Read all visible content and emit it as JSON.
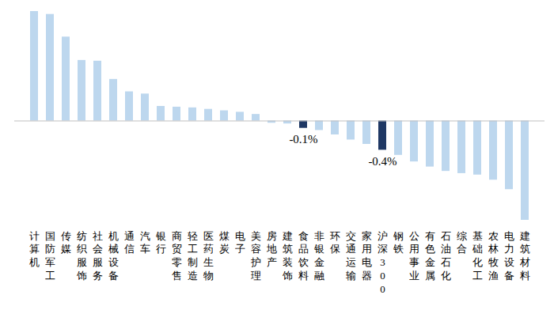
{
  "chart_data": {
    "type": "bar",
    "categories": [
      "计算机",
      "国防军工",
      "传媒",
      "纺织服饰",
      "社会服务",
      "机械设备",
      "通信",
      "汽车",
      "银行",
      "商贸零售",
      "轻工制造",
      "医药生物",
      "煤炭",
      "电子",
      "美容护理",
      "房地产",
      "建筑装饰",
      "食品饮料",
      "非银金融",
      "环保",
      "交通运输",
      "家用电器",
      "沪深300",
      "钢铁",
      "公用事业",
      "有色金属",
      "石油石化",
      "综合",
      "基础化工",
      "农林牧渔",
      "电力设备",
      "建筑材料"
    ],
    "values": [
      1.5,
      1.46,
      1.15,
      0.83,
      0.82,
      0.57,
      0.4,
      0.37,
      0.2,
      0.19,
      0.18,
      0.16,
      0.14,
      0.12,
      0.09,
      -0.03,
      -0.04,
      -0.1,
      -0.13,
      -0.19,
      -0.26,
      -0.32,
      -0.4,
      -0.47,
      -0.56,
      -0.63,
      -0.69,
      -0.72,
      -0.74,
      -0.81,
      -0.94,
      -1.36
    ],
    "value_labels": [
      null,
      null,
      null,
      null,
      null,
      null,
      null,
      null,
      null,
      null,
      null,
      null,
      null,
      null,
      null,
      null,
      null,
      "-0.1%",
      null,
      null,
      null,
      null,
      "-0.4%",
      null,
      null,
      null,
      null,
      null,
      null,
      null,
      null,
      null
    ],
    "colors": [
      "#bdd7ee",
      "#bdd7ee",
      "#bdd7ee",
      "#bdd7ee",
      "#bdd7ee",
      "#bdd7ee",
      "#bdd7ee",
      "#bdd7ee",
      "#bdd7ee",
      "#bdd7ee",
      "#bdd7ee",
      "#bdd7ee",
      "#bdd7ee",
      "#bdd7ee",
      "#bdd7ee",
      "#bdd7ee",
      "#bdd7ee",
      "#1f3864",
      "#bdd7ee",
      "#bdd7ee",
      "#bdd7ee",
      "#bdd7ee",
      "#1f3864",
      "#bdd7ee",
      "#bdd7ee",
      "#bdd7ee",
      "#bdd7ee",
      "#bdd7ee",
      "#bdd7ee",
      "#bdd7ee",
      "#bdd7ee",
      "#bdd7ee"
    ],
    "data_labels": true,
    "tick_labels": "x"
  }
}
